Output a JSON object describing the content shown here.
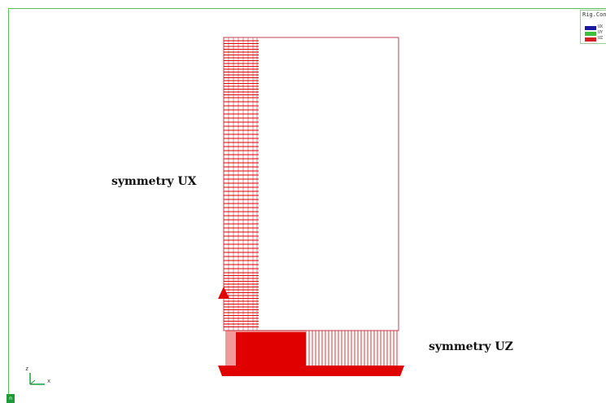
{
  "annotations": {
    "left": "symmetry UX",
    "bottom": "symmetry UZ"
  },
  "legend": {
    "title": "Rig.Con",
    "items": [
      {
        "label": "UX",
        "color": "#1a1a9e"
      },
      {
        "label": "UY",
        "color": "#3fbf3f"
      },
      {
        "label": "UZ",
        "color": "#d42020"
      }
    ]
  },
  "axes": {
    "z": "z",
    "x": "x"
  },
  "corner_button": {
    "label": "n",
    "color": "#1f9a3a"
  },
  "colors": {
    "outline": "#c04050",
    "constraint": "#e00000",
    "axis": "#1a9e3a"
  }
}
